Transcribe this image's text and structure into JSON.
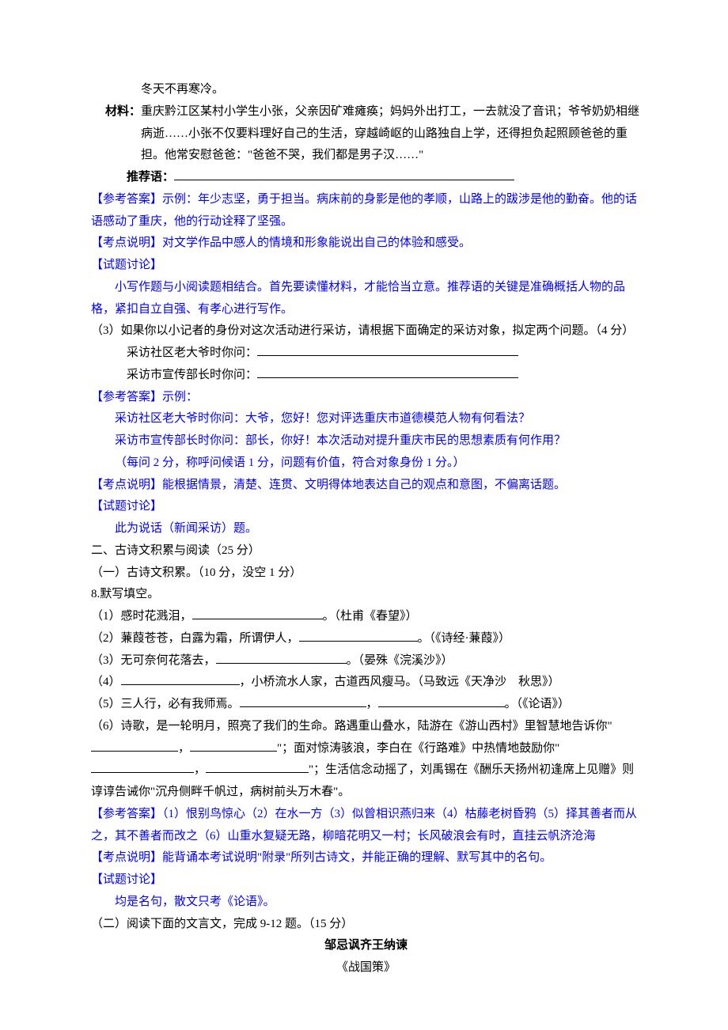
{
  "colors": {
    "text_black": "#000000",
    "text_blue": "#0000ff",
    "background": "#ffffff",
    "blank_line": "#000000"
  },
  "typography": {
    "font_family": "SimSun",
    "font_size_pt": 11,
    "line_height": 1.85
  },
  "top": {
    "line1": "冬天不再寒冷。",
    "material_label": "材料：",
    "material_body": "重庆黔江区某村小学生小张，父亲因矿难瘫痪；妈妈外出打工，一去就没了音讯；爷爷奶奶相继病逝……小张不仅要料理好自己的生活，穿越崎岖的山路独自上学，还得担负起照顾爸爸的重担。他常安慰爸爸：\"爸爸不哭，我们都是男子汉……\"",
    "recommend_label": "推荐语：",
    "ans_label": "【参考答案】",
    "ans_body": "示例：年少志坚，勇于担当。病床前的身影是他的孝顺，山路上的跋涉是他的勤奋。他的话语感动了重庆，他的行动诠释了坚强。",
    "kd_label": "【考点说明】",
    "kd_body": "对文学作品中感人的情境和形象能说出自己的体验和感受。",
    "tl_label": "【试题讨论】",
    "tl_body": "小写作题与小阅读题相结合。首先要读懂材料，才能恰当立意。推荐语的关键是准确概括人物的品格，紧扣自立自强、有孝心进行写作。"
  },
  "q3": {
    "stem": "（3）如果你以小记者的身份对这次活动进行采访，请根据下面确定的采访对象，拟定两个问题。（4 分）",
    "line_a": "采访社区老大爷时你问：",
    "line_b": "采访市宣传部长时你问：",
    "ans_label": "【参考答案】",
    "ans_head": "示例：",
    "ans_a": "采访社区老大爷时你问：大爷，您好！您对评选重庆市道德模范人物有何看法？",
    "ans_b": "采访市宣传部长时你问：部长，你好！本次活动对提升重庆市民的思想素质有何作用？",
    "ans_note": "（每问 2 分，称呼问候语 1 分，问题有价值，符合对象身份 1 分。）",
    "kd_label": "【考点说明】",
    "kd_body": "能根据情景，清楚、连贯、文明得体地表达自己的观点和意图，不偏离话题。",
    "tl_label": "【试题讨论】",
    "tl_body": "此为说话（新闻采访）题。"
  },
  "section2": {
    "heading": "二、古诗文积累与阅读（25 分）",
    "sub1": "（一）古诗文积累。（10 分，没空 1 分）",
    "q8_head": "8.默写填空。",
    "items": {
      "i1_a": "（1）感时花溅泪，",
      "i1_b": "。（杜甫《春望》）",
      "i2_a": "（2）蒹葭苍苍，白露为霜，所谓伊人，",
      "i2_b": "。（《诗经·蒹葭》）",
      "i3_a": "（3）无可奈何花落去，",
      "i3_b": "。（晏殊《浣溪沙》）",
      "i4_a": "（4）",
      "i4_b": "，小桥流水人家，古道西风瘦马。（马致远《天净沙　秋思》）",
      "i5_a": "（5）三人行，必有我师焉。",
      "i5_b": "，",
      "i5_c": "。（《论语》）",
      "i6_a": "（6）诗歌，是一轮明月，照亮了我们的生命。路遇重山叠水，陆游在《游山西村》里智慧地告诉你\"",
      "i6_b": "，",
      "i6_c": "\"；面对惊涛骇浪，李白在《行路难》中热情地鼓励你\"",
      "i6_d": "，",
      "i6_e": "\"；生活信念动摇了，刘禹锡在《酬乐天扬州初逢席上见赠》则谆谆告诫你\"沉舟侧畔千帆过，病树前头万木春\"。"
    },
    "ans_label": "【参考答案】",
    "ans_body": "（1）恨别鸟惊心（2）在水一方（3）似曾相识燕归来（4）枯藤老树昏鸦（5）择其善者而从之，其不善者而改之（6）山重水复疑无路，柳暗花明又一村；长风破浪会有时，直挂云帆济沧海",
    "kd_label": "【考点说明】",
    "kd_body": "能背诵本考试说明\"附录\"所列古诗文，并能正确的理解、默写其中的名句。",
    "tl_label": "【试题讨论】",
    "tl_body": "均是名句，散文只考《论语》。",
    "sub2": "（二）阅读下面的文言文，完成 9-12 题。（15 分）",
    "title": "邹忌讽齐王纳谏",
    "source": "《战国策》"
  },
  "blank_widths": {
    "recommend": 430,
    "interview": 330,
    "poem_short": 165,
    "poem_mid": 150,
    "poem_item4": 150,
    "poem_item5a": 160,
    "poem_item5b": 160,
    "poem_item6a": 110,
    "poem_item6b": 110,
    "poem_item6c": 130,
    "poem_item6d": 130
  }
}
